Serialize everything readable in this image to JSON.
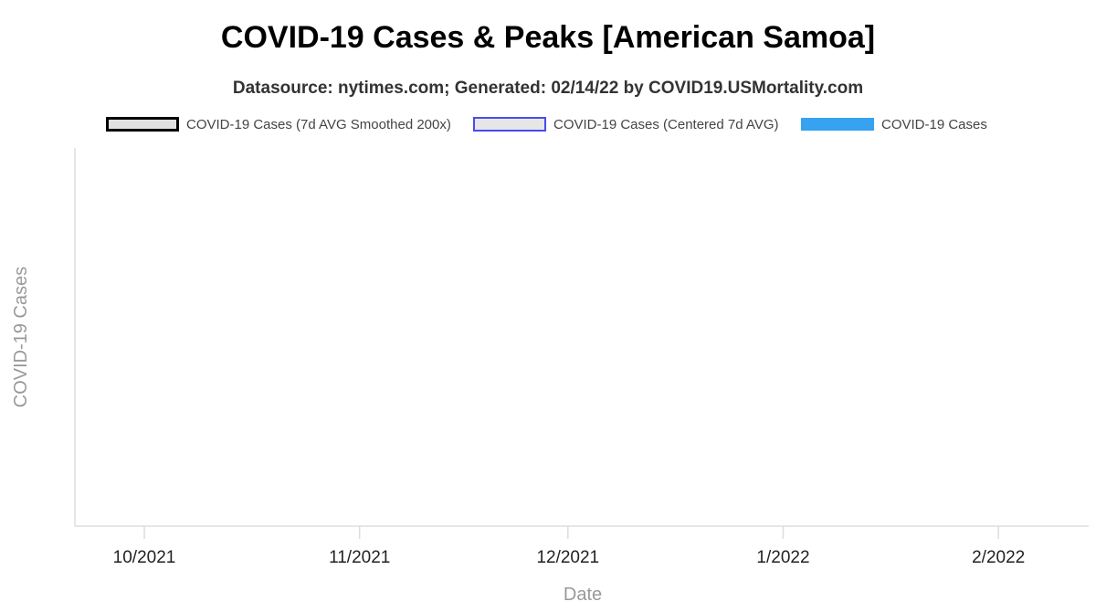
{
  "chart_data": {
    "type": "line",
    "title": "COVID-19 Cases & Peaks [American Samoa]",
    "subtitle": "Datasource: nytimes.com; Generated: 02/14/22 by COVID19.USMortality.com",
    "xlabel": "Date",
    "ylabel": "COVID-19 Cases",
    "grid": false,
    "legend_position": "top",
    "x_ticks": [
      {
        "label": "10/2021",
        "date": "2021-10-01"
      },
      {
        "label": "11/2021",
        "date": "2021-11-01"
      },
      {
        "label": "12/2021",
        "date": "2021-12-01"
      },
      {
        "label": "1/2022",
        "date": "2022-01-01"
      },
      {
        "label": "2/2022",
        "date": "2022-02-01"
      }
    ],
    "xlim": [
      "2021-09-21",
      "2022-02-14"
    ],
    "series": [
      {
        "name": "COVID-19 Cases (7d AVG Smoothed 200x)",
        "kind": "line",
        "stroke": "#000000",
        "fill": "#e0e0e0",
        "values": []
      },
      {
        "name": "COVID-19 Cases (Centered 7d AVG)",
        "kind": "line",
        "stroke": "#4a4af0",
        "fill": "#e6e6e6",
        "values": []
      },
      {
        "name": "COVID-19 Cases",
        "kind": "bar",
        "stroke": "#36a2f0",
        "fill": "#36a2f0",
        "values": []
      }
    ]
  }
}
